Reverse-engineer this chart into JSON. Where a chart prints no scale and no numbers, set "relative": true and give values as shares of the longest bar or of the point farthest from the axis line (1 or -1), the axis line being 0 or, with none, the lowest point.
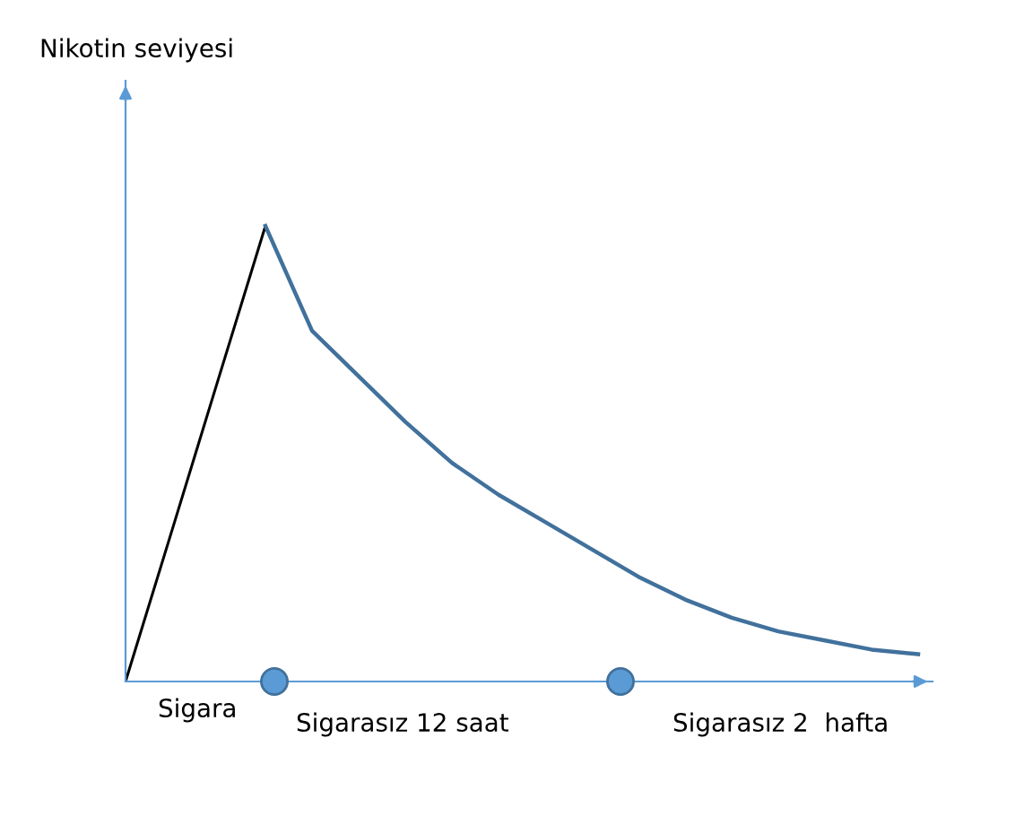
{
  "chart_data": {
    "type": "line",
    "relative": true,
    "categories": [
      null,
      null,
      null,
      null,
      null,
      null,
      null,
      null,
      null,
      null,
      null,
      null,
      null,
      null,
      null,
      null,
      null,
      null
    ],
    "series": [
      {
        "color": "#000000",
        "values": [
          0,
          0.333,
          0.667,
          1,
          null,
          null,
          null,
          null,
          null,
          null,
          null,
          null,
          null,
          null,
          null,
          null,
          null,
          null
        ]
      },
      {
        "color": "#41719c",
        "values": [
          null,
          null,
          null,
          1,
          0.77,
          0.67,
          0.57,
          0.48,
          0.41,
          0.35,
          0.29,
          0.23,
          0.18,
          0.14,
          0.11,
          0.09,
          0.07,
          0.06
        ]
      }
    ],
    "annotations": [
      "Nikotin seviyesi",
      "Sigara",
      "Sigarasız 12 saat",
      "Sigarasız 2  hafta"
    ],
    "grid": false,
    "legend": false,
    "marker": "none",
    "line_style": "solid"
  }
}
